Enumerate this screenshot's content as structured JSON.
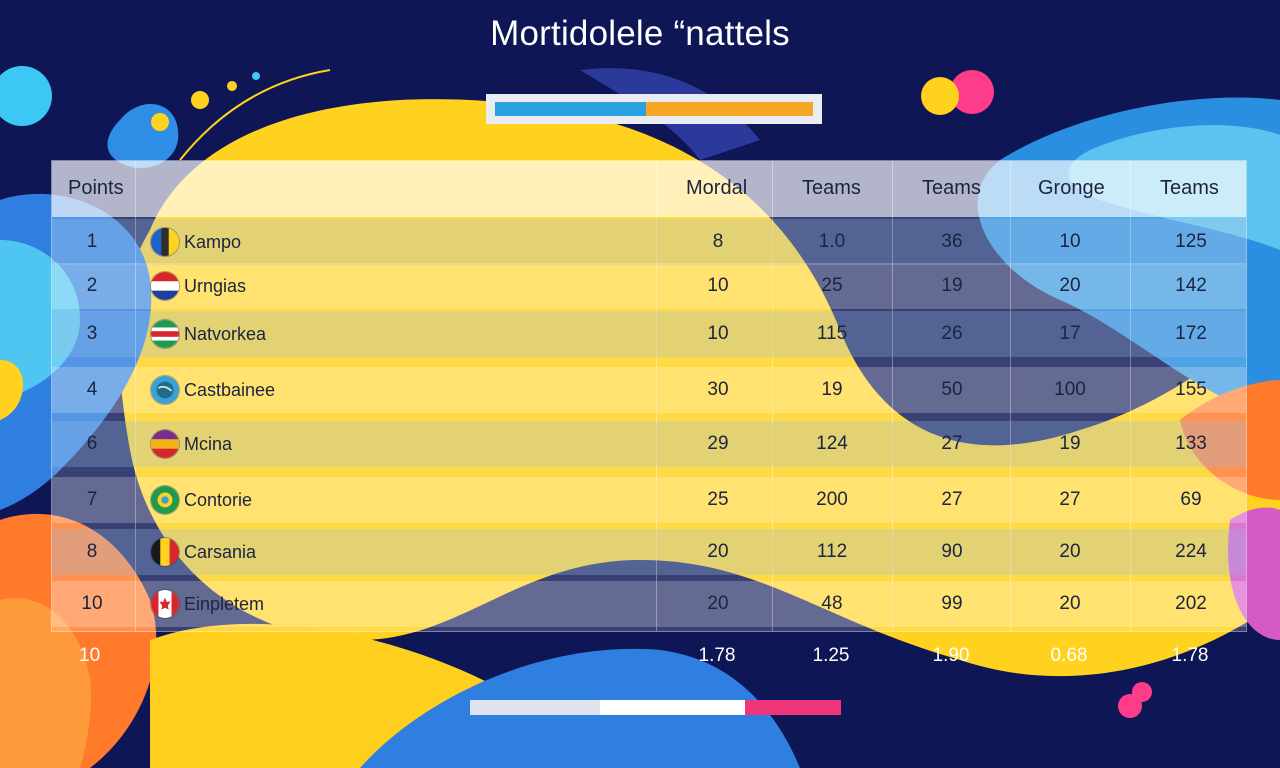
{
  "title": "Mortidolele “nattels",
  "colors": {
    "background": "#0e1656",
    "accent_blue": "#2aa2e0",
    "accent_orange": "#f6a623",
    "accent_pink": "#f0357a",
    "accent_yellow": "#ffd21f"
  },
  "table": {
    "headers": [
      "Points",
      "",
      "Mordal",
      "Teams",
      "Teams",
      "Gronge",
      "Teams"
    ],
    "rows": [
      {
        "rank": "1",
        "team": "Kampo",
        "flag": "flag-blue-yellow",
        "v": [
          "8",
          "1.0",
          "36",
          "10",
          "125"
        ]
      },
      {
        "rank": "2",
        "team": "Urngias",
        "flag": "flag-red-white-blue",
        "v": [
          "10",
          "25",
          "19",
          "20",
          "142"
        ]
      },
      {
        "rank": "3",
        "team": "Natvorkea",
        "flag": "flag-green-white-red",
        "v": [
          "10",
          "115",
          "26",
          "17",
          "172"
        ]
      },
      {
        "rank": "4",
        "team": "Castbainee",
        "flag": "flag-globe",
        "v": [
          "30",
          "19",
          "50",
          "100",
          "155"
        ]
      },
      {
        "rank": "6",
        "team": "Mcina",
        "flag": "flag-red-yellow-purple",
        "v": [
          "29",
          "124",
          "27",
          "19",
          "133"
        ]
      },
      {
        "rank": "7",
        "team": "Contorie",
        "flag": "flag-green-circle",
        "v": [
          "25",
          "200",
          "27",
          "27",
          "69"
        ]
      },
      {
        "rank": "8",
        "team": "Carsania",
        "flag": "flag-black-yellow-red",
        "v": [
          "20",
          "112",
          "90",
          "20",
          "224"
        ]
      },
      {
        "rank": "10",
        "team": "Einpletem",
        "flag": "flag-red-white-leaf",
        "v": [
          "20",
          "48",
          "99",
          "20",
          "202"
        ]
      }
    ]
  },
  "footer": {
    "label": "10",
    "values": [
      "1.78",
      "1.25",
      "1.90",
      "0.68",
      "1.78"
    ]
  },
  "top_progress": {
    "filled_fraction": 0.47
  },
  "bottom_progress": {
    "segments": [
      0.35,
      0.39,
      0.26
    ]
  }
}
